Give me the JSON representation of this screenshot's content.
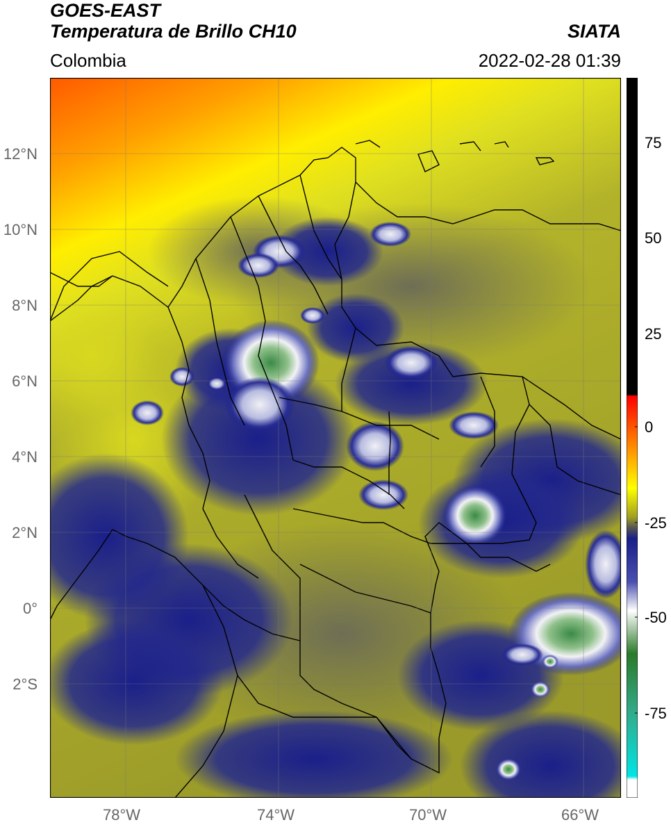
{
  "header": {
    "satellite": "GOES-EAST",
    "product": "Temperatura de Brillo CH10",
    "source": "SIATA",
    "region": "Colombia",
    "datetime": "2022-02-28 01:39"
  },
  "map": {
    "lat_labels": [
      "12°N",
      "10°N",
      "8°N",
      "6°N",
      "4°N",
      "2°N",
      "0°",
      "2°S"
    ],
    "lon_labels": [
      "78°W",
      "74°W",
      "70°W",
      "66°W"
    ],
    "extent": {
      "lon_min": -80,
      "lon_max": -65,
      "lat_min": -5,
      "lat_max": 14
    },
    "colors": {
      "warm": "#ff5a00",
      "yellow": "#ffff00",
      "olive": "#a8a820",
      "navy": "#1a1f8a",
      "white": "#f2f2f2",
      "green": "#3a9a4a",
      "border": "#000000"
    }
  },
  "colorbar": {
    "ticks": [
      "75",
      "50",
      "25",
      "0",
      "-25",
      "-50",
      "-75"
    ],
    "range": [
      -95,
      90
    ]
  }
}
